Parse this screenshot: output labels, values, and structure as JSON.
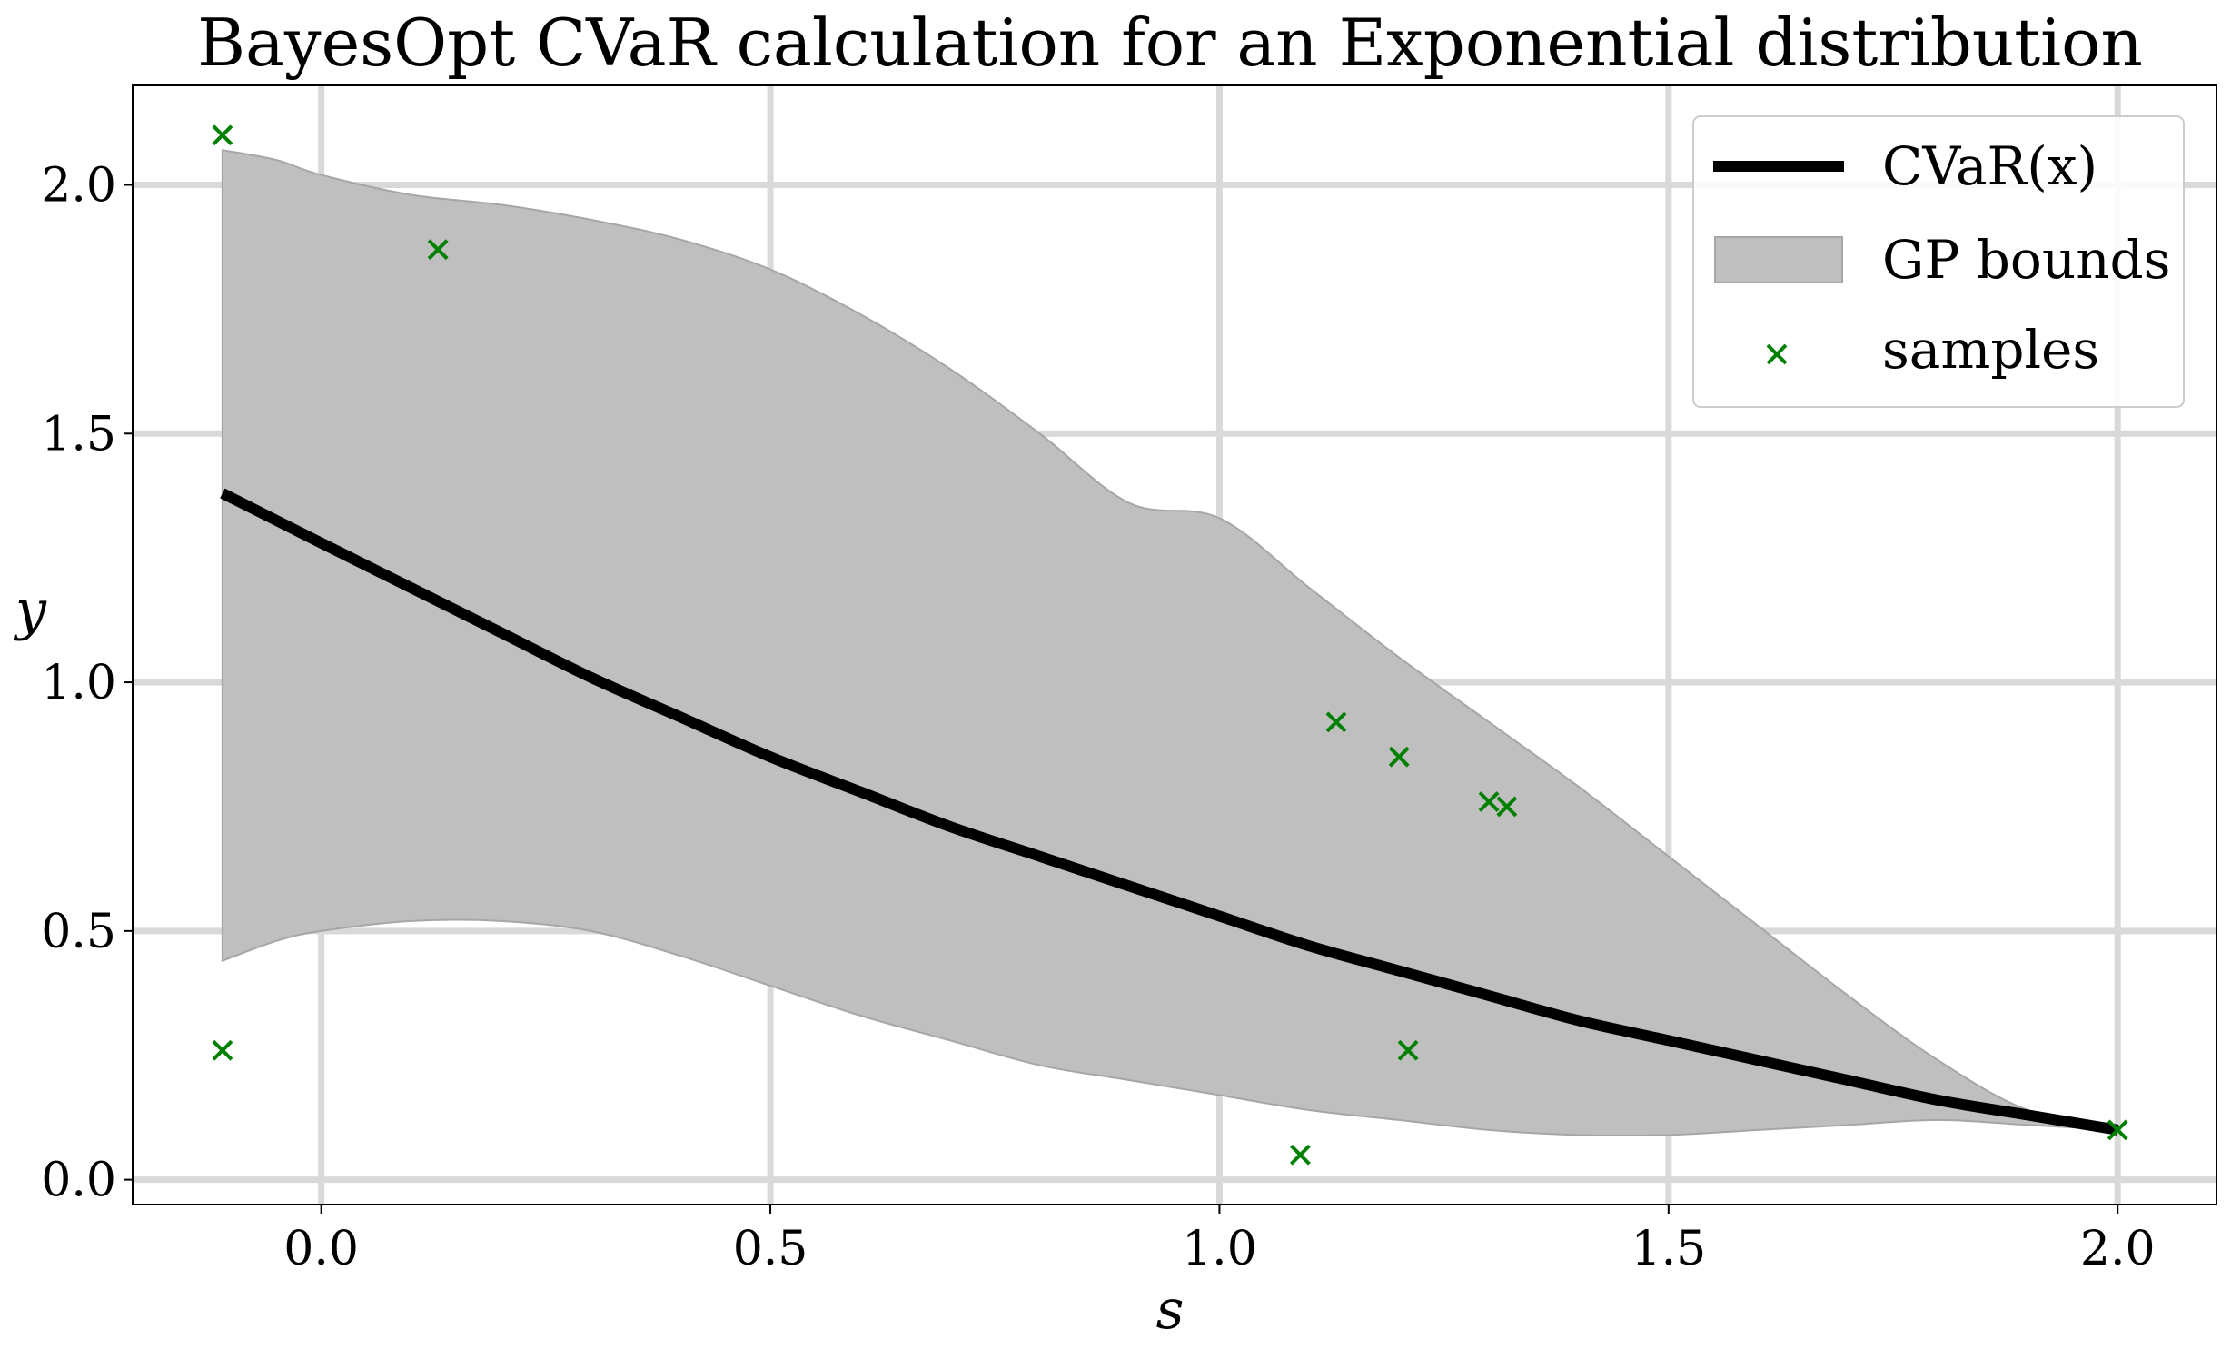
{
  "chart_data": {
    "type": "line",
    "title": "BayesOpt CVaR calculation for an Exponential distribution",
    "xlabel": "s",
    "ylabel": "y",
    "xlim": [
      -0.21,
      2.11
    ],
    "ylim": [
      -0.05,
      2.2
    ],
    "x_ticks": [
      0.0,
      0.5,
      1.0,
      1.5,
      2.0
    ],
    "x_tick_labels": [
      "0.0",
      "0.5",
      "1.0",
      "1.5",
      "2.0"
    ],
    "y_ticks": [
      0.0,
      0.5,
      1.0,
      1.5,
      2.0
    ],
    "y_tick_labels": [
      "0.0",
      "0.5",
      "1.0",
      "1.5",
      "2.0"
    ],
    "grid": true,
    "legend_position": "top-right",
    "series": [
      {
        "name": "CVaR(x)",
        "kind": "line",
        "color": "#000000",
        "x": [
          -0.11,
          0.0,
          0.1,
          0.2,
          0.3,
          0.4,
          0.5,
          0.6,
          0.7,
          0.8,
          0.9,
          1.0,
          1.1,
          1.2,
          1.3,
          1.4,
          1.5,
          1.6,
          1.7,
          1.8,
          1.9,
          2.0
        ],
        "y": [
          1.38,
          1.28,
          1.19,
          1.1,
          1.01,
          0.93,
          0.85,
          0.78,
          0.71,
          0.65,
          0.59,
          0.53,
          0.47,
          0.42,
          0.37,
          0.32,
          0.28,
          0.24,
          0.2,
          0.16,
          0.13,
          0.1
        ]
      },
      {
        "name": "GP bounds",
        "kind": "band",
        "color": "#bfbfbf",
        "x": [
          -0.11,
          -0.05,
          0.0,
          0.1,
          0.2,
          0.3,
          0.4,
          0.5,
          0.6,
          0.7,
          0.8,
          0.9,
          1.0,
          1.1,
          1.2,
          1.3,
          1.4,
          1.5,
          1.6,
          1.7,
          1.8,
          1.9,
          2.0
        ],
        "upper": [
          2.07,
          2.05,
          2.02,
          1.98,
          1.96,
          1.93,
          1.89,
          1.83,
          1.74,
          1.63,
          1.5,
          1.36,
          1.33,
          1.19,
          1.05,
          0.92,
          0.79,
          0.65,
          0.51,
          0.37,
          0.24,
          0.14,
          0.11
        ],
        "lower": [
          0.44,
          0.48,
          0.5,
          0.52,
          0.52,
          0.5,
          0.45,
          0.39,
          0.33,
          0.28,
          0.23,
          0.2,
          0.17,
          0.14,
          0.12,
          0.1,
          0.09,
          0.09,
          0.1,
          0.11,
          0.12,
          0.11,
          0.1
        ]
      },
      {
        "name": "samples",
        "kind": "scatter",
        "color": "#008000",
        "x": [
          -0.11,
          -0.11,
          0.13,
          1.09,
          1.13,
          1.2,
          1.21,
          1.3,
          1.32,
          2.0
        ],
        "y": [
          2.1,
          0.26,
          1.87,
          0.05,
          0.92,
          0.85,
          0.26,
          0.76,
          0.75,
          0.1
        ]
      }
    ]
  }
}
